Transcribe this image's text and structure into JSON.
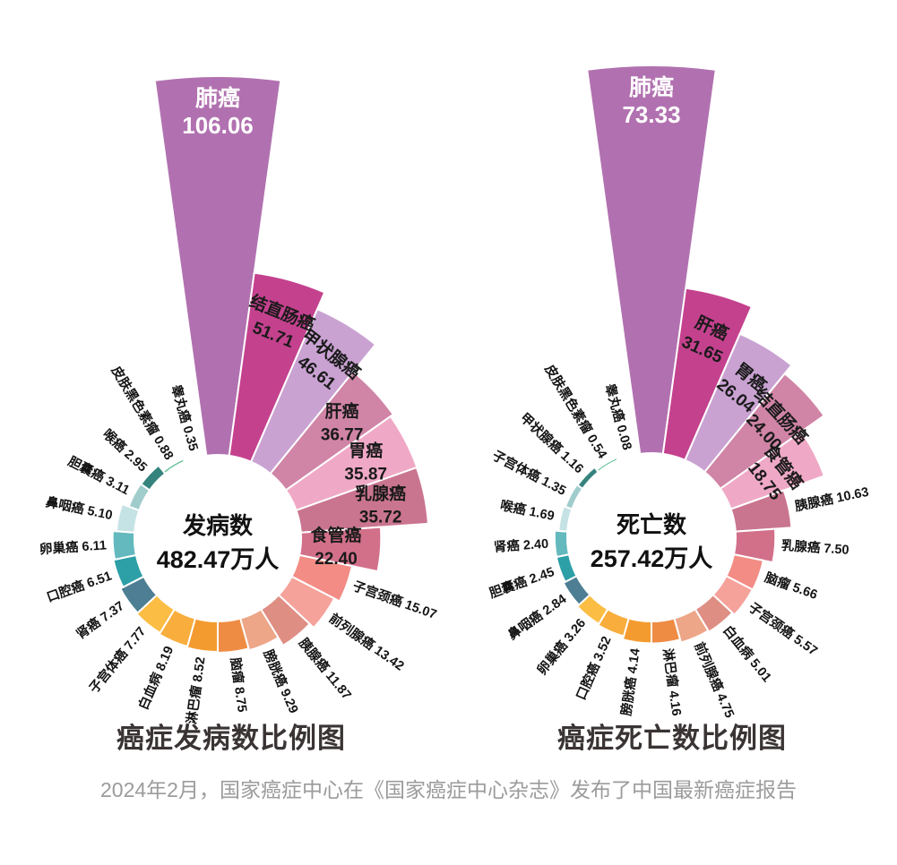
{
  "page": {
    "background": "#ffffff",
    "caption": "2024年2月，国家癌症中心在《国家癌症中心杂志》发布了中国最新癌症报告"
  },
  "palette": [
    "#b171b0",
    "#c4418e",
    "#c9a2d2",
    "#d084a6",
    "#efa9c6",
    "#ca7590",
    "#d2708a",
    "#f28c85",
    "#f5a29b",
    "#df8e84",
    "#eda687",
    "#ef8c44",
    "#f49b30",
    "#f8ad3c",
    "#fbbd44",
    "#4d7e93",
    "#2d9fa7",
    "#63b9bd",
    "#c5e2e4",
    "#a0cccc",
    "#35837d",
    "#6ec6a0",
    "#2dbd59"
  ],
  "chart_data": [
    {
      "type": "pie",
      "variant": "nightingale-rose",
      "title": "癌症发病数比例图",
      "center_label": "发病数",
      "center_value": "482.47万人",
      "unit": "万人",
      "layout": {
        "start_angle": "top-center",
        "order": "clockwise-descending",
        "equal_angle_slices": true,
        "donut_hole": true
      },
      "slices": [
        {
          "name": "肺癌",
          "value": "106.06",
          "label": "inside",
          "rot": 0
        },
        {
          "name": "结直肠癌",
          "value": "51.71",
          "label": "inside",
          "rot": 22
        },
        {
          "name": "甲状腺癌",
          "value": "46.61",
          "label": "inside",
          "rot": 38
        },
        {
          "name": "肝癌",
          "value": "36.77",
          "label": "inside",
          "rot": 0
        },
        {
          "name": "胃癌",
          "value": "35.87",
          "label": "inside",
          "rot": 0
        },
        {
          "name": "乳腺癌",
          "value": "35.72",
          "label": "inside",
          "rot": 0
        },
        {
          "name": "食管癌",
          "value": "22.40",
          "label": "inside",
          "rot": 0
        },
        {
          "name": "子宫颈癌",
          "value": "15.07",
          "label": "outside"
        },
        {
          "name": "前列腺癌",
          "value": "13.42",
          "label": "outside"
        },
        {
          "name": "胰腺癌",
          "value": "11.87",
          "label": "outside"
        },
        {
          "name": "膀胱癌",
          "value": "9.29",
          "label": "outside"
        },
        {
          "name": "脑瘤",
          "value": "8.75",
          "label": "outside"
        },
        {
          "name": "淋巴瘤",
          "value": "8.52",
          "label": "outside"
        },
        {
          "name": "白血病",
          "value": "8.19",
          "label": "outside"
        },
        {
          "name": "子宫体癌",
          "value": "7.77",
          "label": "outside"
        },
        {
          "name": "肾癌",
          "value": "7.37",
          "label": "outside"
        },
        {
          "name": "口腔癌",
          "value": "6.51",
          "label": "outside"
        },
        {
          "name": "卵巢癌",
          "value": "6.11",
          "label": "outside"
        },
        {
          "name": "鼻咽癌",
          "value": "5.10",
          "label": "outside"
        },
        {
          "name": "胆囊癌",
          "value": "3.11",
          "label": "outside"
        },
        {
          "name": "喉癌",
          "value": "2.95",
          "label": "outside"
        },
        {
          "name": "皮肤黑色素瘤",
          "value": "0.88",
          "label": "outside"
        },
        {
          "name": "睾丸癌",
          "value": "0.35",
          "label": "outside"
        }
      ]
    },
    {
      "type": "pie",
      "variant": "nightingale-rose",
      "title": "癌症死亡数比例图",
      "center_label": "死亡数",
      "center_value": "257.42万人",
      "unit": "万人",
      "layout": {
        "start_angle": "top-center",
        "order": "clockwise-descending",
        "equal_angle_slices": true,
        "donut_hole": true
      },
      "slices": [
        {
          "name": "肺癌",
          "value": "73.33",
          "label": "inside",
          "rot": 0
        },
        {
          "name": "肝癌",
          "value": "31.65",
          "label": "inside",
          "rot": 24
        },
        {
          "name": "胃癌",
          "value": "26.04",
          "label": "inside",
          "rot": 39
        },
        {
          "name": "结直肠癌",
          "value": "24.00",
          "label": "inside",
          "rot": 47
        },
        {
          "name": "食管癌",
          "value": "18.75",
          "label": "inside",
          "rot": 52
        },
        {
          "name": "胰腺癌",
          "value": "10.63",
          "label": "outside"
        },
        {
          "name": "乳腺癌",
          "value": "7.50",
          "label": "outside"
        },
        {
          "name": "脑瘤",
          "value": "5.66",
          "label": "outside"
        },
        {
          "name": "子宫颈癌",
          "value": "5.57",
          "label": "outside"
        },
        {
          "name": "白血病",
          "value": "5.01",
          "label": "outside"
        },
        {
          "name": "前列腺癌",
          "value": "4.75",
          "label": "outside"
        },
        {
          "name": "淋巴瘤",
          "value": "4.16",
          "label": "outside"
        },
        {
          "name": "膀胱癌",
          "value": "4.14",
          "label": "outside"
        },
        {
          "name": "口腔癌",
          "value": "3.52",
          "label": "outside"
        },
        {
          "name": "卵巢癌",
          "value": "3.26",
          "label": "outside"
        },
        {
          "name": "鼻咽癌",
          "value": "2.84",
          "label": "outside"
        },
        {
          "name": "胆囊癌",
          "value": "2.45",
          "label": "outside"
        },
        {
          "name": "肾癌",
          "value": "2.40",
          "label": "outside"
        },
        {
          "name": "喉癌",
          "value": "1.69",
          "label": "outside"
        },
        {
          "name": "子宫体癌",
          "value": "1.35",
          "label": "outside"
        },
        {
          "name": "甲状腺癌",
          "value": "1.16",
          "label": "outside"
        },
        {
          "name": "皮肤黑色素瘤",
          "value": "0.54",
          "label": "outside"
        },
        {
          "name": "睾丸癌",
          "value": "0.08",
          "label": "outside"
        }
      ]
    }
  ]
}
